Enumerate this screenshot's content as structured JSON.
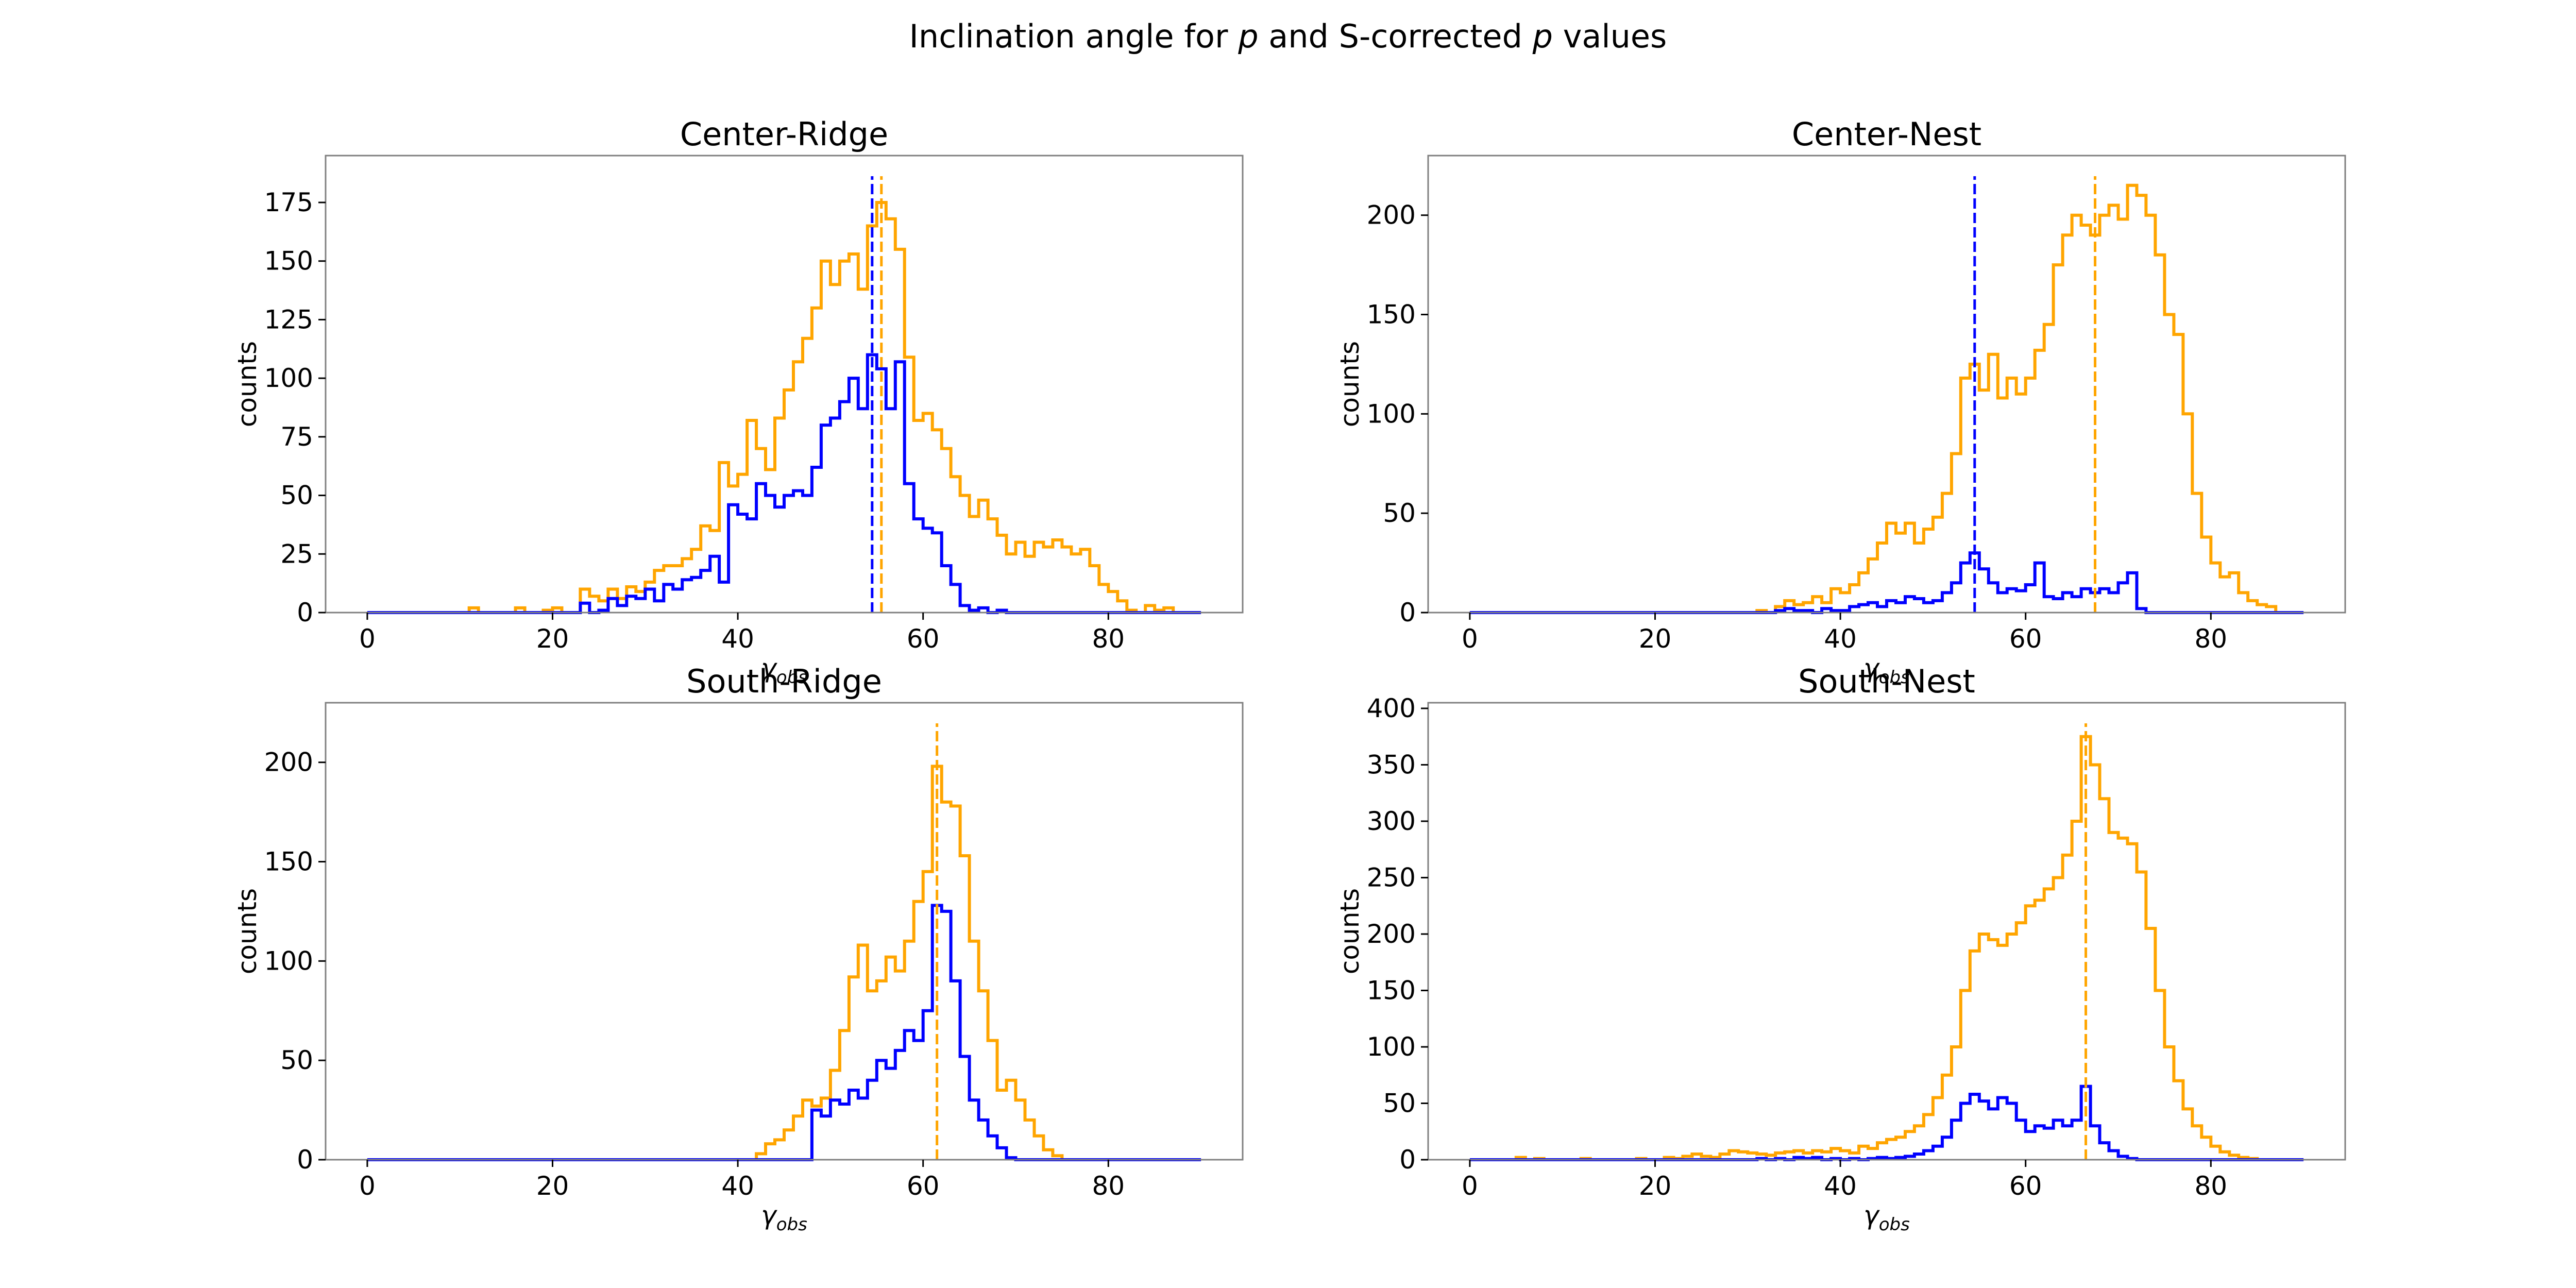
{
  "title": {
    "text_pre": "Inclination angle for ",
    "p1": "p",
    "text_mid": " and S-corrected ",
    "p2": "p",
    "text_post": " values"
  },
  "colors": {
    "p": "#0000ff",
    "corrected": "#ffa500"
  },
  "chart_data": [
    {
      "type": "histogram",
      "title": "Center-Ridge",
      "ylabel": "counts",
      "xlabel_main": "γ",
      "xlabel_sub": "obs",
      "xlim": [
        -4.5,
        94.5
      ],
      "ylim": [
        0,
        195
      ],
      "xticks": [
        0,
        20,
        40,
        60,
        80
      ],
      "yticks": [
        0,
        25,
        50,
        75,
        100,
        125,
        150,
        175
      ],
      "bin_start": 0,
      "bin_width": 1,
      "series": [
        {
          "color": "#ffa500",
          "values": [
            0,
            0,
            0,
            0,
            0,
            0,
            0,
            0,
            0,
            0,
            0,
            2,
            0,
            0,
            0,
            0,
            2,
            0,
            0,
            1,
            2,
            0,
            0,
            10,
            7,
            5,
            10,
            6,
            11,
            9,
            13,
            18,
            20,
            20,
            23,
            27,
            37,
            35,
            64,
            54,
            59,
            82,
            70,
            61,
            83,
            95,
            107,
            117,
            130,
            150,
            140,
            150,
            153,
            138,
            165,
            175,
            168,
            155,
            109,
            82,
            85,
            78,
            70,
            58,
            50,
            41,
            48,
            40,
            33,
            25,
            30,
            24,
            30,
            28,
            31,
            28,
            25,
            27,
            20,
            12,
            9,
            5,
            1,
            0,
            3,
            1,
            2,
            0,
            0,
            0
          ]
        },
        {
          "color": "#0000ff",
          "values": [
            0,
            0,
            0,
            0,
            0,
            0,
            0,
            0,
            0,
            0,
            0,
            0,
            0,
            0,
            0,
            0,
            0,
            0,
            0,
            0,
            0,
            0,
            0,
            4,
            0,
            1,
            6,
            3,
            7,
            6,
            10,
            5,
            12,
            10,
            14,
            15,
            18,
            24,
            13,
            46,
            42,
            40,
            55,
            50,
            45,
            50,
            52,
            50,
            62,
            80,
            83,
            90,
            100,
            87,
            110,
            104,
            87,
            107,
            55,
            40,
            36,
            34,
            20,
            12,
            3,
            1,
            2,
            0,
            1,
            0,
            0,
            0,
            0,
            0,
            0,
            0,
            0,
            0,
            0,
            0,
            0,
            0,
            0,
            0,
            0,
            0,
            0,
            0,
            0,
            0
          ]
        }
      ],
      "vlines": [
        {
          "x": 54.5,
          "color": "#0000ff"
        },
        {
          "x": 55.5,
          "color": "#ffa500"
        }
      ]
    },
    {
      "type": "histogram",
      "title": "Center-Nest",
      "ylabel": "counts",
      "xlabel_main": "γ",
      "xlabel_sub": "obs",
      "xlim": [
        -4.5,
        94.5
      ],
      "ylim": [
        0,
        230
      ],
      "xticks": [
        0,
        20,
        40,
        60,
        80
      ],
      "yticks": [
        0,
        50,
        100,
        150,
        200
      ],
      "bin_start": 0,
      "bin_width": 1,
      "series": [
        {
          "color": "#ffa500",
          "values": [
            0,
            0,
            0,
            0,
            0,
            0,
            0,
            0,
            0,
            0,
            0,
            0,
            0,
            0,
            0,
            0,
            0,
            0,
            0,
            0,
            0,
            0,
            0,
            0,
            0,
            0,
            0,
            0,
            0,
            0,
            0,
            1,
            0,
            3,
            6,
            4,
            5,
            8,
            5,
            12,
            10,
            14,
            20,
            27,
            35,
            45,
            40,
            45,
            35,
            42,
            48,
            60,
            80,
            118,
            125,
            112,
            130,
            108,
            118,
            110,
            118,
            132,
            145,
            175,
            190,
            200,
            195,
            190,
            200,
            205,
            198,
            215,
            210,
            200,
            180,
            150,
            140,
            100,
            60,
            38,
            25,
            18,
            20,
            10,
            6,
            4,
            3,
            0,
            0,
            0
          ]
        },
        {
          "color": "#0000ff",
          "values": [
            0,
            0,
            0,
            0,
            0,
            0,
            0,
            0,
            0,
            0,
            0,
            0,
            0,
            0,
            0,
            0,
            0,
            0,
            0,
            0,
            0,
            0,
            0,
            0,
            0,
            0,
            0,
            0,
            0,
            0,
            0,
            0,
            0,
            1,
            2,
            1,
            1,
            0,
            2,
            1,
            1,
            3,
            4,
            5,
            3,
            6,
            5,
            8,
            7,
            5,
            6,
            10,
            15,
            25,
            30,
            22,
            15,
            10,
            12,
            11,
            14,
            25,
            8,
            7,
            10,
            8,
            12,
            10,
            12,
            10,
            15,
            20,
            2,
            0,
            0,
            0,
            0,
            0,
            0,
            0,
            0,
            0,
            0,
            0,
            0,
            0,
            0,
            0,
            0,
            0
          ]
        }
      ],
      "vlines": [
        {
          "x": 54.5,
          "color": "#0000ff"
        },
        {
          "x": 67.5,
          "color": "#ffa500"
        }
      ]
    },
    {
      "type": "histogram",
      "title": "South-Ridge",
      "ylabel": "counts",
      "xlabel_main": "γ",
      "xlabel_sub": "obs",
      "xlim": [
        -4.5,
        94.5
      ],
      "ylim": [
        0,
        230
      ],
      "xticks": [
        0,
        20,
        40,
        60,
        80
      ],
      "yticks": [
        0,
        50,
        100,
        150,
        200
      ],
      "bin_start": 0,
      "bin_width": 1,
      "series": [
        {
          "color": "#ffa500",
          "values": [
            0,
            0,
            0,
            0,
            0,
            0,
            0,
            0,
            0,
            0,
            0,
            0,
            0,
            0,
            0,
            0,
            0,
            0,
            0,
            0,
            0,
            0,
            0,
            0,
            0,
            0,
            0,
            0,
            0,
            0,
            0,
            0,
            0,
            0,
            0,
            0,
            0,
            0,
            0,
            0,
            0,
            0,
            3,
            8,
            10,
            15,
            22,
            30,
            27,
            31,
            45,
            65,
            92,
            108,
            85,
            90,
            102,
            95,
            110,
            130,
            145,
            198,
            180,
            178,
            153,
            110,
            85,
            60,
            35,
            40,
            30,
            20,
            12,
            5,
            2,
            0,
            0,
            0,
            0,
            0,
            0,
            0,
            0,
            0,
            0,
            0,
            0,
            0,
            0,
            0
          ]
        },
        {
          "color": "#0000ff",
          "values": [
            0,
            0,
            0,
            0,
            0,
            0,
            0,
            0,
            0,
            0,
            0,
            0,
            0,
            0,
            0,
            0,
            0,
            0,
            0,
            0,
            0,
            0,
            0,
            0,
            0,
            0,
            0,
            0,
            0,
            0,
            0,
            0,
            0,
            0,
            0,
            0,
            0,
            0,
            0,
            0,
            0,
            0,
            0,
            0,
            0,
            0,
            0,
            0,
            25,
            22,
            30,
            28,
            35,
            31,
            40,
            50,
            46,
            55,
            65,
            60,
            75,
            128,
            125,
            90,
            52,
            30,
            20,
            12,
            6,
            1,
            0,
            0,
            0,
            0,
            0,
            0,
            0,
            0,
            0,
            0,
            0,
            0,
            0,
            0,
            0,
            0,
            0,
            0,
            0,
            0
          ]
        }
      ],
      "vlines": [
        {
          "x": 61.5,
          "color": "#ffa500"
        }
      ]
    },
    {
      "type": "histogram",
      "title": "South-Nest",
      "ylabel": "counts",
      "xlabel_main": "γ",
      "xlabel_sub": "obs",
      "xlim": [
        -4.5,
        94.5
      ],
      "ylim": [
        0,
        405
      ],
      "xticks": [
        0,
        20,
        40,
        60,
        80
      ],
      "yticks": [
        0,
        50,
        100,
        150,
        200,
        250,
        300,
        350,
        400
      ],
      "bin_start": 0,
      "bin_width": 1,
      "series": [
        {
          "color": "#ffa500",
          "values": [
            0,
            0,
            0,
            0,
            0,
            2,
            0,
            1,
            0,
            0,
            0,
            0,
            1,
            0,
            0,
            0,
            0,
            0,
            1,
            0,
            0,
            2,
            1,
            3,
            5,
            3,
            2,
            5,
            8,
            7,
            6,
            5,
            4,
            6,
            7,
            8,
            6,
            8,
            7,
            10,
            8,
            6,
            12,
            10,
            15,
            18,
            20,
            25,
            30,
            40,
            55,
            75,
            100,
            150,
            185,
            200,
            195,
            190,
            200,
            210,
            225,
            230,
            240,
            250,
            270,
            300,
            375,
            350,
            320,
            290,
            285,
            280,
            255,
            205,
            150,
            100,
            70,
            45,
            30,
            20,
            12,
            7,
            4,
            2,
            1,
            0,
            0,
            0,
            0,
            0
          ]
        },
        {
          "color": "#0000ff",
          "values": [
            0,
            0,
            0,
            0,
            0,
            0,
            0,
            0,
            0,
            0,
            0,
            0,
            0,
            0,
            0,
            0,
            0,
            0,
            0,
            0,
            0,
            0,
            0,
            0,
            0,
            0,
            0,
            0,
            0,
            0,
            0,
            1,
            0,
            1,
            0,
            2,
            1,
            2,
            0,
            1,
            0,
            1,
            0,
            1,
            2,
            1,
            2,
            3,
            5,
            8,
            12,
            20,
            35,
            50,
            58,
            52,
            45,
            55,
            50,
            35,
            25,
            30,
            28,
            35,
            30,
            35,
            65,
            30,
            15,
            8,
            3,
            1,
            0,
            0,
            0,
            0,
            0,
            0,
            0,
            0,
            0,
            0,
            0,
            0,
            0,
            0,
            0,
            0,
            0,
            0
          ]
        }
      ],
      "vlines": [
        {
          "x": 66.5,
          "color": "#ffa500"
        }
      ]
    }
  ]
}
